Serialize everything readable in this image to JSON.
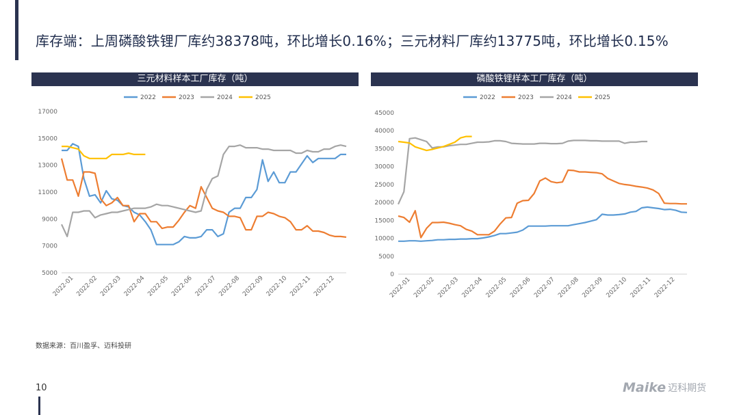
{
  "headline": "库存端：上周磷酸铁锂厂库约38378吨，环比增长0.16%；三元材料厂库约13775吨，环比增长0.15%",
  "source": "数据来源：百川盈孚、迈科投研",
  "page_number": "10",
  "brand": {
    "logo_text": "Maike",
    "name": "迈科期货"
  },
  "colors": {
    "2022": "#5b9bd5",
    "2023": "#ed7d31",
    "2024": "#a5a5a5",
    "2025": "#ffc000"
  },
  "chart_data": [
    {
      "type": "line",
      "title": "三元材料样本工厂库存（吨）",
      "x_tick_labels": [
        "2022-01",
        "2022-02",
        "2022-03",
        "2022-04",
        "2022-05",
        "2022-06",
        "2022-07",
        "2022-08",
        "2022-09",
        "2022-10",
        "2022-11",
        "2022-12"
      ],
      "ylim": [
        5000,
        17000
      ],
      "y_ticks": [
        5000,
        7000,
        9000,
        11000,
        13000,
        15000,
        17000
      ],
      "legend": [
        "2022",
        "2023",
        "2024",
        "2025"
      ],
      "series": [
        {
          "name": "2022",
          "values": [
            14100,
            14100,
            14600,
            14400,
            12000,
            10700,
            10800,
            10200,
            11100,
            10500,
            10400,
            10000,
            9900,
            9500,
            9300,
            8800,
            8200,
            7100,
            7100,
            7100,
            7100,
            7300,
            7700,
            7600,
            7600,
            7700,
            8200,
            8200,
            7700,
            7900,
            9500,
            9800,
            9800,
            10600,
            10600,
            11200,
            13400,
            11800,
            12500,
            11700,
            11700,
            12500,
            12500,
            13100,
            13700,
            13200,
            13500,
            13500,
            13500,
            13500,
            13800,
            13800
          ]
        },
        {
          "name": "2023",
          "values": [
            13500,
            11900,
            11900,
            10700,
            12500,
            12500,
            12400,
            10500,
            10000,
            10200,
            10600,
            10000,
            10000,
            8800,
            9400,
            9400,
            8800,
            8800,
            8300,
            8400,
            8400,
            8900,
            9500,
            10000,
            9800,
            11400,
            10600,
            9800,
            9600,
            9500,
            9200,
            9200,
            9100,
            8200,
            8200,
            9200,
            9200,
            9500,
            9400,
            9200,
            9100,
            8800,
            8200,
            8200,
            8500,
            8100,
            8100,
            8000,
            7800,
            7700,
            7700,
            7650
          ]
        },
        {
          "name": "2024",
          "values": [
            8600,
            7700,
            9500,
            9500,
            9600,
            9600,
            9100,
            9300,
            9400,
            9500,
            9500,
            9600,
            9700,
            9800,
            9800,
            9800,
            9900,
            10100,
            10000,
            10000,
            9900,
            9800,
            9700,
            9600,
            9500,
            9600,
            11200,
            12000,
            12200,
            13800,
            14400,
            14400,
            14500,
            14300,
            14300,
            14300,
            14200,
            14200,
            14100,
            14100,
            14100,
            14100,
            13900,
            13900,
            14100,
            14000,
            14000,
            14200,
            14200,
            14400,
            14500,
            14400
          ]
        },
        {
          "name": "2025",
          "values": [
            14400,
            14400,
            14300,
            14200,
            13700,
            13500,
            13500,
            13500,
            13500,
            13800,
            13800,
            13800,
            13900,
            13800,
            13800,
            13800
          ]
        }
      ]
    },
    {
      "type": "line",
      "title": "磷酸铁锂样本工厂库存（吨）",
      "x_tick_labels": [
        "2022-01",
        "2022-02",
        "2022-03",
        "2022-04",
        "2022-05",
        "2022-06",
        "2022-07",
        "2022-08",
        "2022-09",
        "2022-10",
        "2022-11",
        "2022-12"
      ],
      "ylim": [
        0,
        45000
      ],
      "y_ticks": [
        0,
        5000,
        10000,
        15000,
        20000,
        25000,
        30000,
        35000,
        40000,
        45000
      ],
      "legend": [
        "2022",
        "2023",
        "2024",
        "2025"
      ],
      "series": [
        {
          "name": "2022",
          "values": [
            9200,
            9200,
            9300,
            9300,
            9200,
            9300,
            9400,
            9600,
            9600,
            9700,
            9700,
            9800,
            9800,
            9900,
            9900,
            10100,
            10400,
            10800,
            11300,
            11300,
            11500,
            11700,
            12300,
            13400,
            13400,
            13400,
            13400,
            13500,
            13500,
            13500,
            13500,
            13800,
            14100,
            14400,
            14800,
            15200,
            16700,
            16500,
            16500,
            16600,
            16800,
            17300,
            17500,
            18500,
            18700,
            18500,
            18300,
            18000,
            18100,
            17800,
            17300,
            17200
          ]
        },
        {
          "name": "2023",
          "values": [
            16200,
            15800,
            14500,
            17700,
            10200,
            12800,
            14400,
            14400,
            14500,
            14200,
            13800,
            13500,
            12500,
            12000,
            11000,
            11000,
            11000,
            12000,
            14000,
            15700,
            15800,
            19800,
            20500,
            20600,
            22500,
            26000,
            26800,
            25800,
            25500,
            25700,
            29000,
            28900,
            28500,
            28500,
            28400,
            28300,
            28000,
            26700,
            26000,
            25300,
            25000,
            24800,
            24500,
            24300,
            24000,
            23500,
            22500,
            19800,
            19700,
            19700,
            19600,
            19600
          ]
        },
        {
          "name": "2024",
          "values": [
            19500,
            23000,
            37800,
            38000,
            37500,
            37000,
            35200,
            35500,
            35500,
            35800,
            36000,
            36200,
            36200,
            36500,
            36800,
            36800,
            36900,
            37200,
            37200,
            37000,
            36500,
            36400,
            36300,
            36300,
            36300,
            36500,
            36500,
            36400,
            36400,
            36500,
            37100,
            37300,
            37300,
            37300,
            37200,
            37200,
            37100,
            37100,
            37100,
            37100,
            36500,
            36800,
            36800,
            37000,
            37000
          ]
        },
        {
          "name": "2025",
          "values": [
            37000,
            36800,
            36600,
            35500,
            35000,
            34500,
            34800,
            35200,
            35600,
            36200,
            36800,
            38000,
            38400,
            38400
          ]
        }
      ]
    }
  ]
}
